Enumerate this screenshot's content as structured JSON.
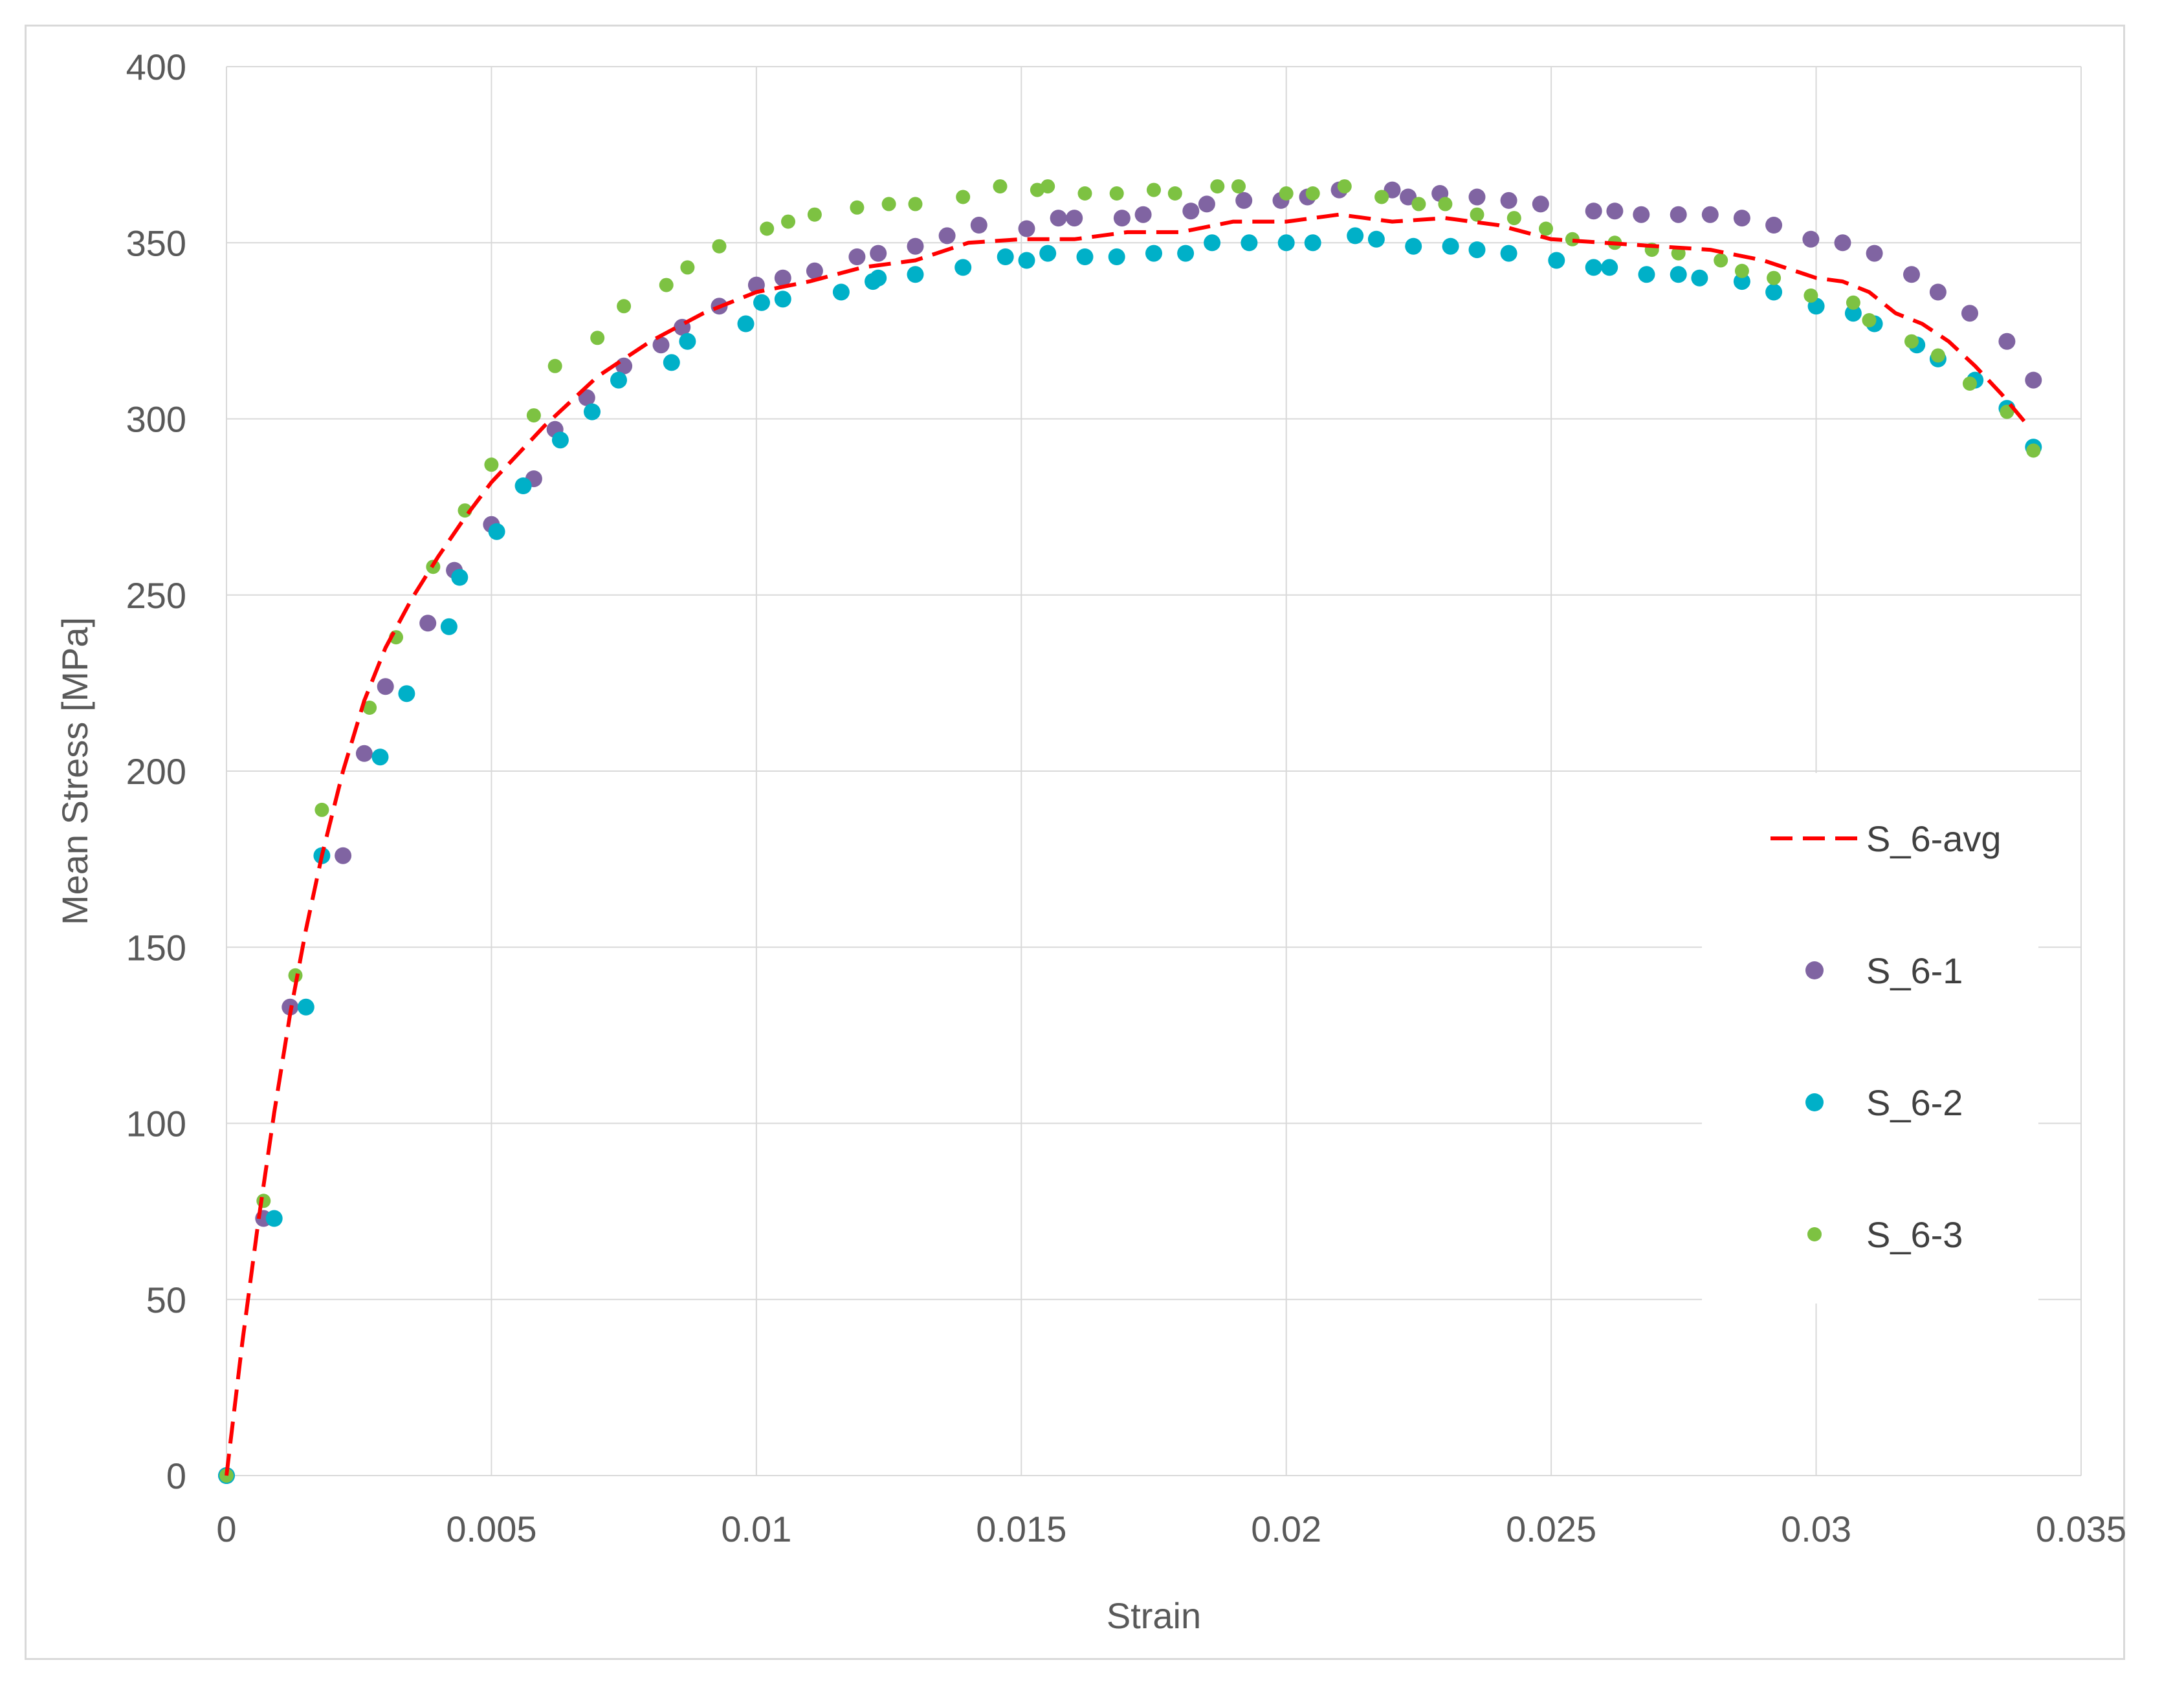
{
  "chart_data": {
    "type": "scatter",
    "title": "",
    "xlabel": "Strain",
    "ylabel": "Mean Stress [MPa]",
    "xlim": [
      0,
      0.035
    ],
    "ylim": [
      0,
      400
    ],
    "x_ticks": [
      0,
      0.005,
      0.01,
      0.015,
      0.02,
      0.025,
      0.03,
      0.035
    ],
    "x_tick_labels": [
      "0",
      "0.005",
      "0.01",
      "0.015",
      "0.02",
      "0.025",
      "0.03",
      "0.035"
    ],
    "y_ticks": [
      0,
      50,
      100,
      150,
      200,
      250,
      300,
      350,
      400
    ],
    "y_tick_labels": [
      "0",
      "50",
      "100",
      "150",
      "200",
      "250",
      "300",
      "350",
      "400"
    ],
    "grid": true,
    "legend_position": "right",
    "series": [
      {
        "name": "S_6-avg",
        "kind": "line",
        "style": "dashed",
        "color": "#ff0000",
        "x": [
          0,
          0.0003,
          0.0006,
          0.0009,
          0.0012,
          0.0015,
          0.0018,
          0.0022,
          0.0026,
          0.003,
          0.0035,
          0.004,
          0.0045,
          0.005,
          0.0055,
          0.006,
          0.0065,
          0.007,
          0.0075,
          0.008,
          0.0085,
          0.009,
          0.0095,
          0.01,
          0.011,
          0.012,
          0.013,
          0.014,
          0.015,
          0.016,
          0.017,
          0.018,
          0.019,
          0.02,
          0.021,
          0.022,
          0.023,
          0.024,
          0.025,
          0.026,
          0.027,
          0.028,
          0.029,
          0.03,
          0.0305,
          0.031,
          0.0315,
          0.032,
          0.0325,
          0.033,
          0.0335,
          0.034
        ],
        "y": [
          0,
          38,
          72,
          103,
          131,
          155,
          176,
          200,
          220,
          235,
          249,
          261,
          272,
          282,
          290,
          298,
          305,
          312,
          317,
          322,
          326,
          330,
          333,
          336,
          339,
          343,
          345,
          350,
          351,
          351,
          353,
          353,
          356,
          356,
          358,
          356,
          357,
          355,
          351,
          350,
          349,
          348,
          345,
          340,
          339,
          336,
          330,
          327,
          322,
          315,
          307,
          298
        ]
      },
      {
        "name": "S_6-1",
        "kind": "scatter",
        "color": "#8064a2",
        "x": [
          0,
          0.0007,
          0.0012,
          0.0022,
          0.0026,
          0.003,
          0.0038,
          0.0043,
          0.005,
          0.0058,
          0.0062,
          0.0068,
          0.0075,
          0.0082,
          0.0086,
          0.0093,
          0.01,
          0.0105,
          0.0111,
          0.0119,
          0.0123,
          0.013,
          0.0136,
          0.0142,
          0.0151,
          0.0157,
          0.016,
          0.0169,
          0.0173,
          0.0182,
          0.0185,
          0.0192,
          0.0199,
          0.0204,
          0.021,
          0.022,
          0.0223,
          0.0229,
          0.0236,
          0.0242,
          0.0248,
          0.0258,
          0.0262,
          0.0267,
          0.0274,
          0.028,
          0.0286,
          0.0292,
          0.0299,
          0.0305,
          0.0311,
          0.0318,
          0.0323,
          0.0329,
          0.0336,
          0.0341
        ],
        "y": [
          0,
          73,
          133,
          176,
          205,
          224,
          242,
          257,
          270,
          283,
          297,
          306,
          315,
          321,
          326,
          332,
          338,
          340,
          342,
          346,
          347,
          349,
          352,
          355,
          354,
          357,
          357,
          357,
          358,
          359,
          361,
          362,
          362,
          363,
          365,
          365,
          363,
          364,
          363,
          362,
          361,
          359,
          359,
          358,
          358,
          358,
          357,
          355,
          351,
          350,
          347,
          341,
          336,
          330,
          322,
          311
        ]
      },
      {
        "name": "S_6-2",
        "kind": "scatter",
        "color": "#00b0c8",
        "x": [
          0,
          0.0009,
          0.0015,
          0.0018,
          0.0029,
          0.0034,
          0.0042,
          0.0044,
          0.0051,
          0.0056,
          0.0063,
          0.0069,
          0.0074,
          0.0084,
          0.0087,
          0.0098,
          0.0101,
          0.0105,
          0.0116,
          0.0122,
          0.0123,
          0.013,
          0.0139,
          0.0147,
          0.0151,
          0.0155,
          0.0162,
          0.0168,
          0.0175,
          0.0181,
          0.0186,
          0.0193,
          0.02,
          0.0205,
          0.0213,
          0.0217,
          0.0224,
          0.0231,
          0.0236,
          0.0242,
          0.0251,
          0.0258,
          0.0261,
          0.0268,
          0.0274,
          0.0278,
          0.0286,
          0.0292,
          0.03,
          0.0307,
          0.0311,
          0.0319,
          0.0323,
          0.033,
          0.0336,
          0.0341
        ],
        "y": [
          0,
          73,
          133,
          176,
          204,
          222,
          241,
          255,
          268,
          281,
          294,
          302,
          311,
          316,
          322,
          327,
          333,
          334,
          336,
          339,
          340,
          341,
          343,
          346,
          345,
          347,
          346,
          346,
          347,
          347,
          350,
          350,
          350,
          350,
          352,
          351,
          349,
          349,
          348,
          347,
          345,
          343,
          343,
          341,
          341,
          340,
          339,
          336,
          332,
          330,
          327,
          321,
          317,
          311,
          303,
          292
        ]
      },
      {
        "name": "S_6-3",
        "kind": "scatter",
        "color": "#7dc242",
        "x": [
          0,
          0.0007,
          0.0013,
          0.0018,
          0.0027,
          0.0032,
          0.0039,
          0.0045,
          0.005,
          0.0058,
          0.0062,
          0.007,
          0.0075,
          0.0083,
          0.0087,
          0.0093,
          0.0102,
          0.0106,
          0.0111,
          0.0119,
          0.0125,
          0.013,
          0.0139,
          0.0146,
          0.0153,
          0.0155,
          0.0162,
          0.0168,
          0.0175,
          0.0179,
          0.0187,
          0.0191,
          0.02,
          0.0205,
          0.0211,
          0.0218,
          0.0225,
          0.023,
          0.0236,
          0.0243,
          0.0249,
          0.0254,
          0.0262,
          0.0269,
          0.0274,
          0.0282,
          0.0286,
          0.0292,
          0.0299,
          0.0307,
          0.031,
          0.0318,
          0.0323,
          0.0329,
          0.0336,
          0.0341
        ],
        "y": [
          0,
          78,
          142,
          189,
          218,
          238,
          258,
          274,
          287,
          301,
          315,
          323,
          332,
          338,
          343,
          349,
          354,
          356,
          358,
          360,
          361,
          361,
          363,
          366,
          365,
          366,
          364,
          364,
          365,
          364,
          366,
          366,
          364,
          364,
          366,
          363,
          361,
          361,
          358,
          357,
          354,
          351,
          350,
          348,
          347,
          345,
          342,
          340,
          335,
          333,
          328,
          322,
          318,
          310,
          302,
          291
        ]
      }
    ]
  }
}
